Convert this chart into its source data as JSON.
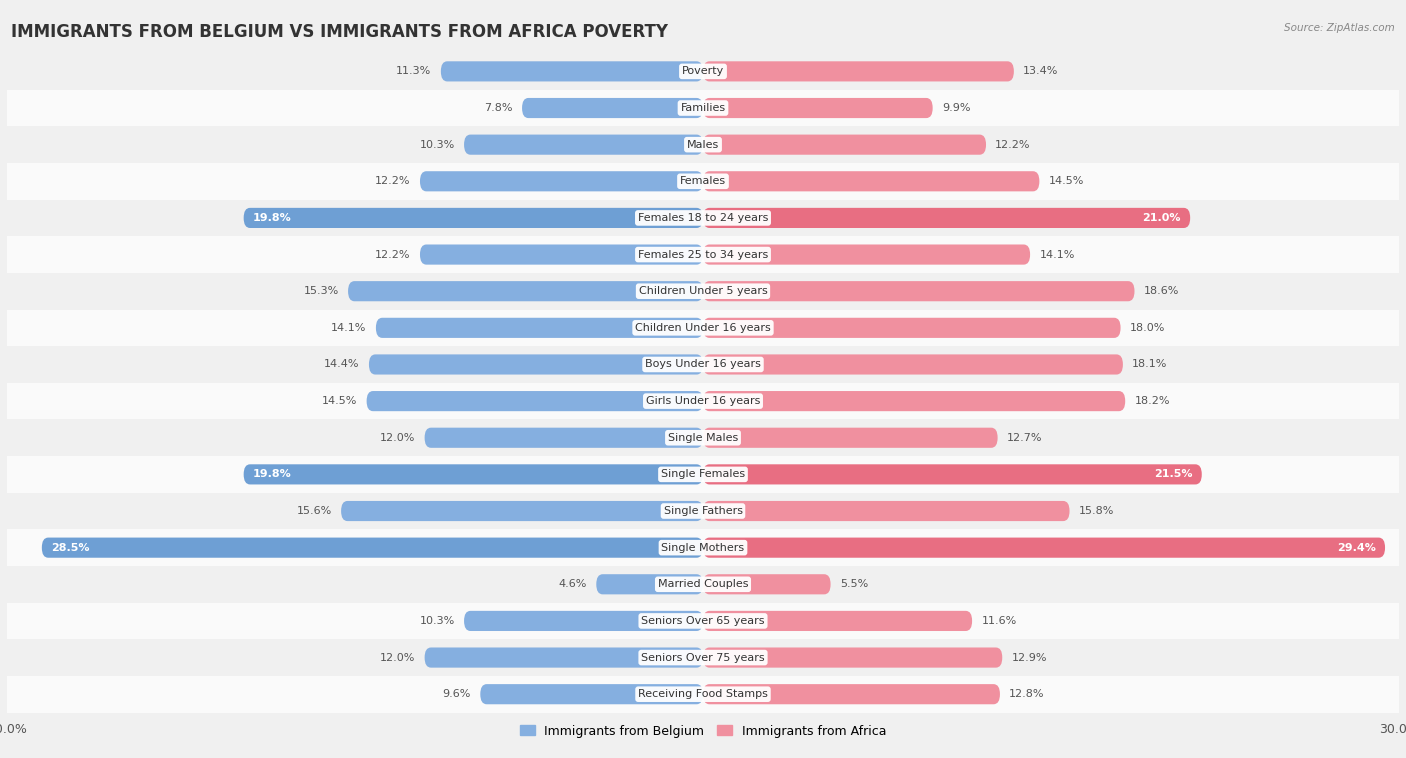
{
  "title": "IMMIGRANTS FROM BELGIUM VS IMMIGRANTS FROM AFRICA POVERTY",
  "source": "Source: ZipAtlas.com",
  "categories": [
    "Poverty",
    "Families",
    "Males",
    "Females",
    "Females 18 to 24 years",
    "Females 25 to 34 years",
    "Children Under 5 years",
    "Children Under 16 years",
    "Boys Under 16 years",
    "Girls Under 16 years",
    "Single Males",
    "Single Females",
    "Single Fathers",
    "Single Mothers",
    "Married Couples",
    "Seniors Over 65 years",
    "Seniors Over 75 years",
    "Receiving Food Stamps"
  ],
  "belgium_values": [
    11.3,
    7.8,
    10.3,
    12.2,
    19.8,
    12.2,
    15.3,
    14.1,
    14.4,
    14.5,
    12.0,
    19.8,
    15.6,
    28.5,
    4.6,
    10.3,
    12.0,
    9.6
  ],
  "africa_values": [
    13.4,
    9.9,
    12.2,
    14.5,
    21.0,
    14.1,
    18.6,
    18.0,
    18.1,
    18.2,
    12.7,
    21.5,
    15.8,
    29.4,
    5.5,
    11.6,
    12.9,
    12.8
  ],
  "belgium_color": "#85afe0",
  "africa_color": "#f0909f",
  "belgium_highlight_color": "#6e9fd4",
  "africa_highlight_color": "#e86e82",
  "highlight_indices": [
    4,
    11,
    13
  ],
  "row_colors": [
    "#f0f0f0",
    "#fafafa"
  ],
  "axis_limit": 30.0,
  "bar_height": 0.55,
  "legend_belgium": "Immigrants from Belgium",
  "legend_africa": "Immigrants from Africa",
  "title_fontsize": 12,
  "label_fontsize": 8.0,
  "value_fontsize": 8.0,
  "bg_color": "#f0f0f0"
}
